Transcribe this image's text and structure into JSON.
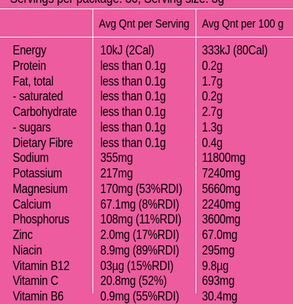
{
  "top_text": "Servings per package: 30, Serving size: 3g",
  "headers": {
    "serving": "Avg Qnt per Serving",
    "per100": "Avg Qnt per 100 g"
  },
  "rows": [
    {
      "name": "Energy",
      "serving": "10kJ (2Cal)",
      "per100": "333kJ (80Cal)"
    },
    {
      "name": "Protein",
      "serving": "less than 0.1g",
      "per100": "0.2g"
    },
    {
      "name": "Fat, total",
      "serving": "less than 0.1g",
      "per100": "1.7g"
    },
    {
      "name": "- saturated",
      "serving": "less than 0.1g",
      "per100": "0.2g"
    },
    {
      "name": "Carbohydrate",
      "serving": "less than 0.1g",
      "per100": "2.7g"
    },
    {
      "name": "- sugars",
      "serving": "less than 0.1g",
      "per100": "1.3g"
    },
    {
      "name": "Dietary Fibre",
      "serving": "less than 0.1g",
      "per100": "0.4g"
    },
    {
      "name": "Sodium",
      "serving": "355mg",
      "per100": "11800mg"
    },
    {
      "name": "Potassium",
      "serving": "217mg",
      "per100": "7240mg"
    },
    {
      "name": "Magnesium",
      "serving": "170mg (53%RDI)",
      "per100": "5660mg"
    },
    {
      "name": "Calcium",
      "serving": "67.1mg (8%RDI)",
      "per100": "2240mg"
    },
    {
      "name": "Phosphorus",
      "serving": "108mg (11%RDI)",
      "per100": "3600mg"
    },
    {
      "name": "Zinc",
      "serving": "2.0mg (17%RDI)",
      "per100": "67.0mg"
    },
    {
      "name": "Niacin",
      "serving": "8.9mg (89%RDI)",
      "per100": "295mg"
    },
    {
      "name": "Vitamin B12",
      "serving": "03µg (15%RDI)",
      "per100": "9.8µg"
    },
    {
      "name": "Vitamin C",
      "serving": "20.8mg (52%)",
      "per100": "693mg"
    },
    {
      "name": "Vitamin B6",
      "serving": "0.9mg (55%RDI)",
      "per100": "30.4mg"
    }
  ]
}
